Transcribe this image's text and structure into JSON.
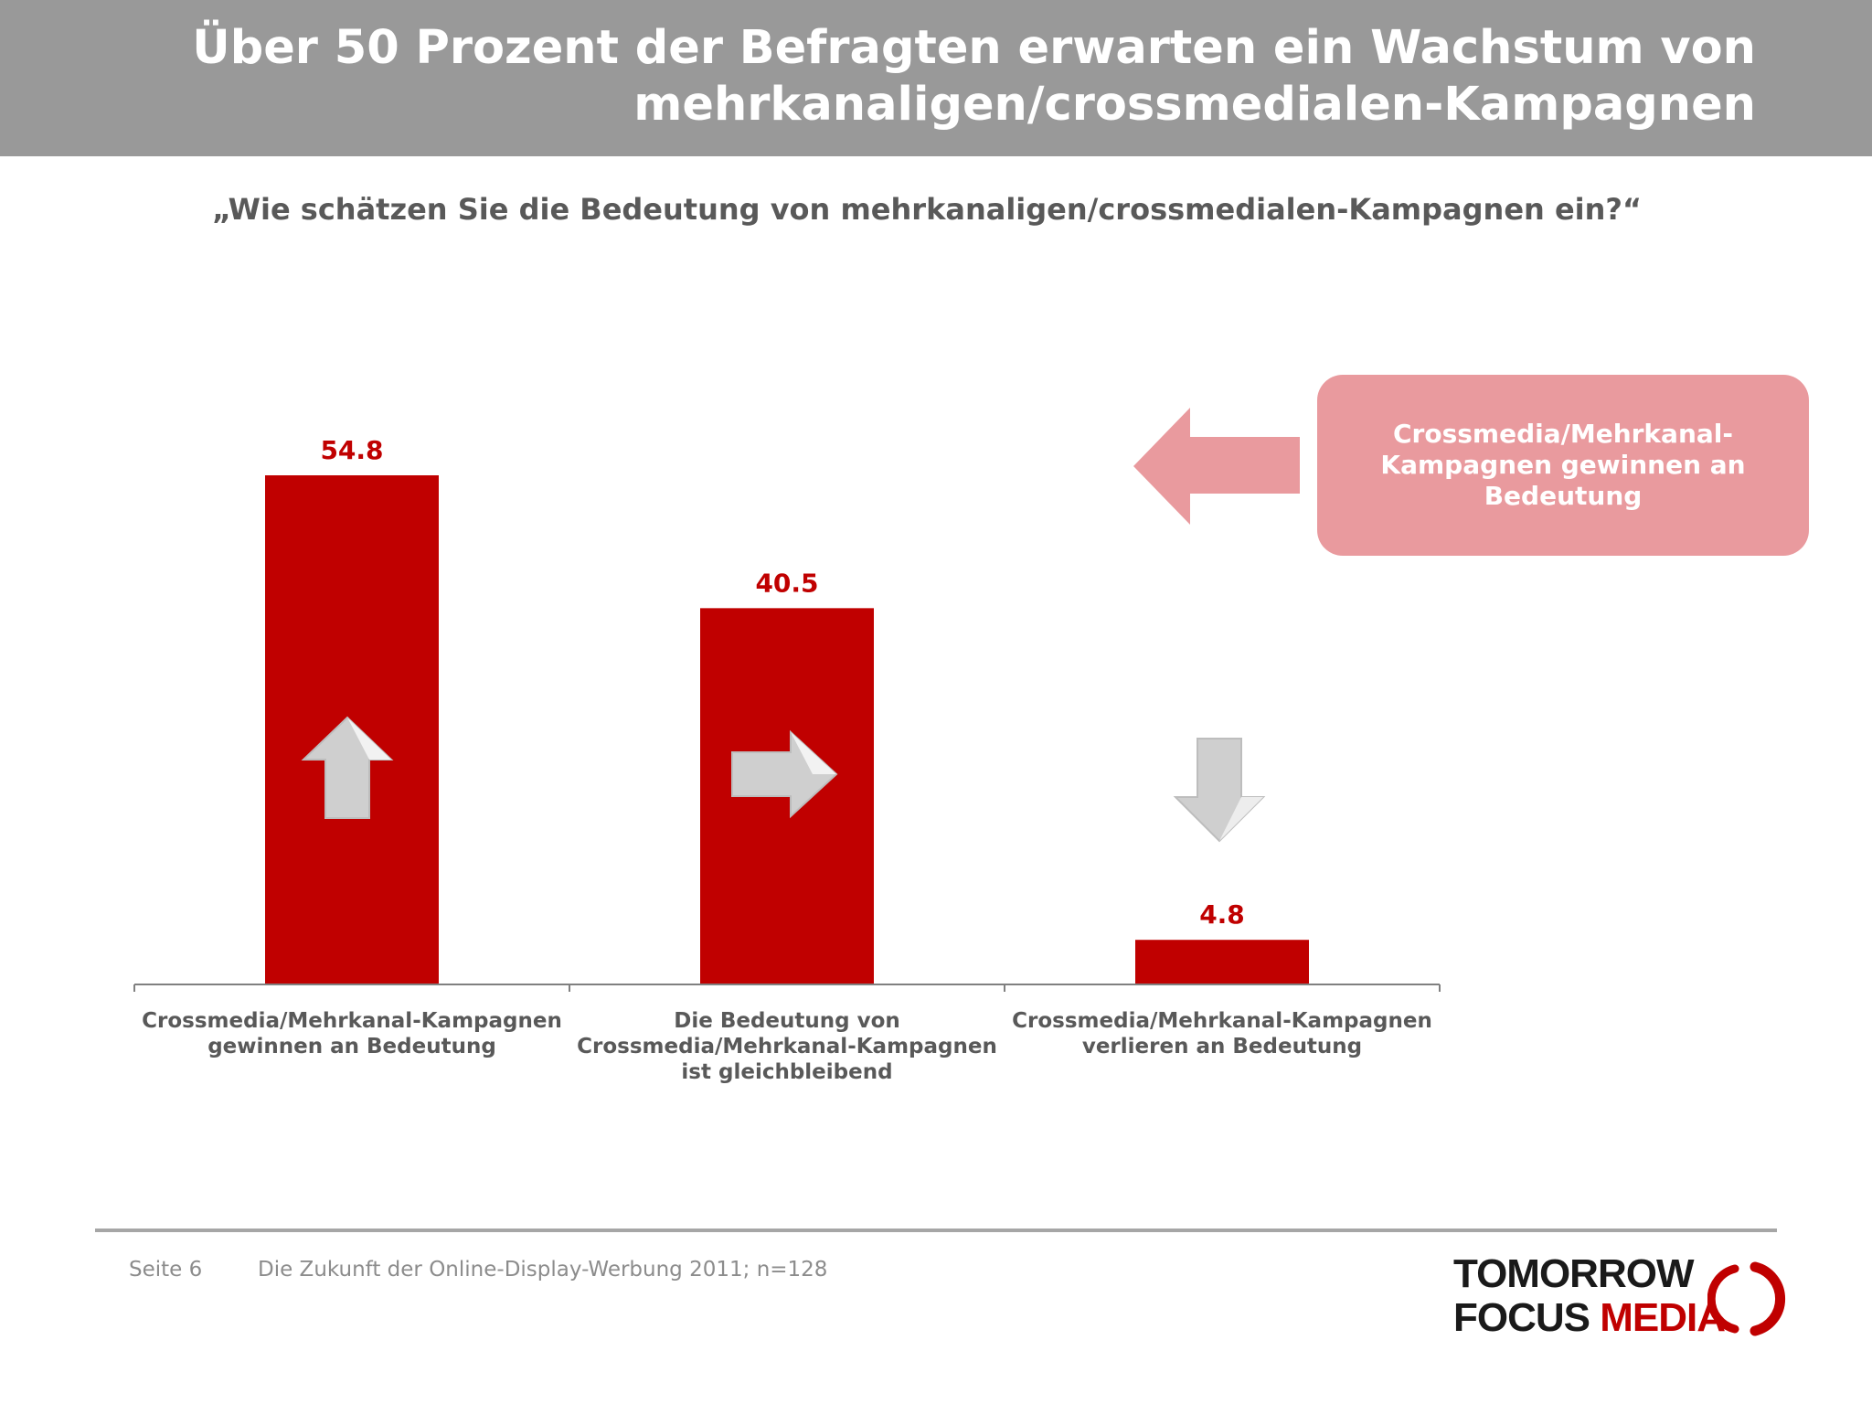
{
  "header": {
    "title_line1": "Über 50 Prozent der Befragten erwarten ein Wachstum von",
    "title_line2": "mehrkanaligen/crossmedialen-Kampagnen"
  },
  "question": "„Wie schätzen Sie die Bedeutung von mehrkanaligen/crossmedialen-Kampagnen ein?“",
  "chart_data": {
    "type": "bar",
    "categories": [
      "Crossmedia/Mehrkanal-Kampagnen gewinnen an Bedeutung",
      "Die Bedeutung von Crossmedia/Mehrkanal-Kampagnen ist gleichbleibend",
      "Crossmedia/Mehrkanal-Kampagnen verlieren an Bedeutung"
    ],
    "category_lines": [
      [
        "Crossmedia/Mehrkanal-Kampagnen",
        "gewinnen an Bedeutung"
      ],
      [
        "Die Bedeutung von",
        "Crossmedia/Mehrkanal-Kampagnen",
        "ist gleichbleibend"
      ],
      [
        "Crossmedia/Mehrkanal-Kampagnen",
        "verlieren an Bedeutung"
      ]
    ],
    "values": [
      54.8,
      40.5,
      4.8
    ],
    "value_labels": [
      "54.8",
      "40.5",
      "4.8"
    ],
    "trend_icons": [
      "arrow-up-icon",
      "arrow-right-icon",
      "arrow-down-icon"
    ],
    "bar_color": "#c00000",
    "title": "",
    "xlabel": "",
    "ylabel": "",
    "ylim": [
      0,
      60
    ],
    "grid": false,
    "legend": "none"
  },
  "callout": {
    "line1": "Crossmedia/Mehrkanal-",
    "line2": "Kampagnen gewinnen an",
    "line3": "Bedeutung",
    "color": "#e99a9e",
    "arrow_icon": "arrow-left-icon"
  },
  "footer": {
    "page": "Seite 6",
    "source": "Die Zukunft der Online-Display-Werbung 2011; n=128"
  },
  "logo": {
    "line1": "TOMORROW",
    "line2a": "FOCUS ",
    "line2b": "MEDIA",
    "accent": "#c00000"
  }
}
